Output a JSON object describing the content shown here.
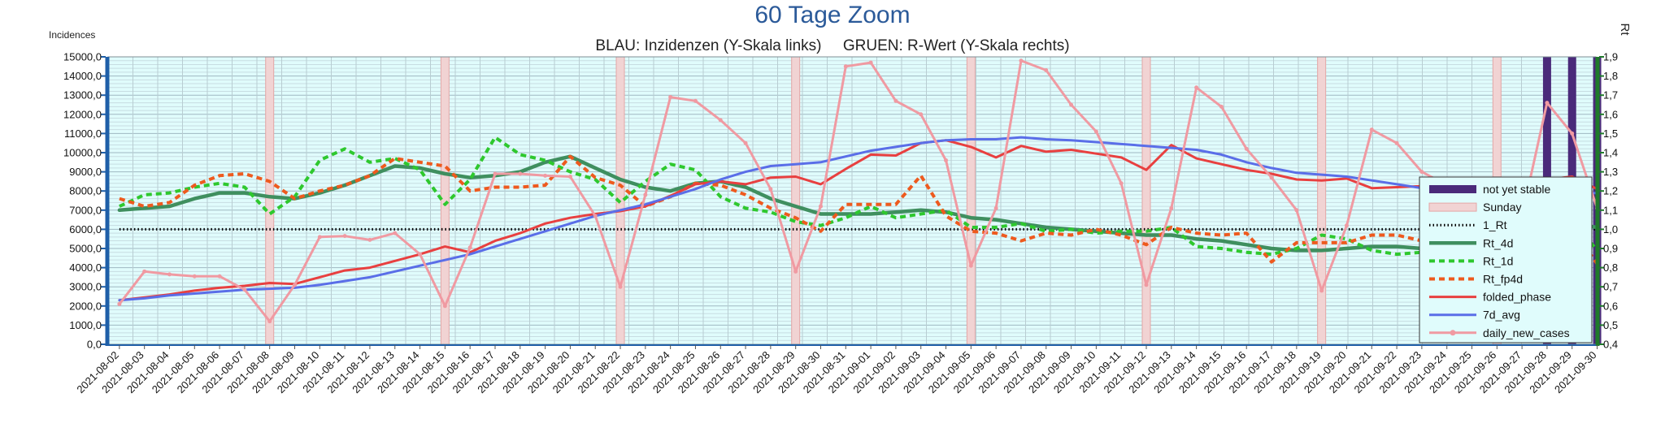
{
  "chart_data": {
    "type": "line",
    "title": "60 Tage Zoom",
    "subtitle": "BLAU: Inzidenzen (Y-Skala links)     GRUEN: R-Wert (Y-Skala rechts)",
    "ylabel": "Incidences",
    "y2label": "Rt",
    "ylim": [
      0,
      15000
    ],
    "y2lim": [
      0.4,
      1.9
    ],
    "ytick_labels": [
      "0,0",
      "1000,0",
      "2000,0",
      "3000,0",
      "4000,0",
      "5000,0",
      "6000,0",
      "7000,0",
      "8000,0",
      "9000,0",
      "10000,0",
      "11000,0",
      "12000,0",
      "13000,0",
      "14000,0",
      "15000,0"
    ],
    "y2tick_labels": [
      "0,4",
      "0,5",
      "0,6",
      "0,7",
      "0,8",
      "0,9",
      "1,0",
      "1,1",
      "1,2",
      "1,3",
      "1,4",
      "1,5",
      "1,6",
      "1,7",
      "1,8",
      "1,9"
    ],
    "grid": true,
    "legend_position": "right",
    "x": [
      "2021-08-02",
      "2021-08-03",
      "2021-08-04",
      "2021-08-05",
      "2021-08-06",
      "2021-08-07",
      "2021-08-08",
      "2021-08-09",
      "2021-08-10",
      "2021-08-11",
      "2021-08-12",
      "2021-08-13",
      "2021-08-14",
      "2021-08-15",
      "2021-08-16",
      "2021-08-17",
      "2021-08-18",
      "2021-08-19",
      "2021-08-20",
      "2021-08-21",
      "2021-08-22",
      "2021-08-23",
      "2021-08-24",
      "2021-08-25",
      "2021-08-26",
      "2021-08-27",
      "2021-08-28",
      "2021-08-29",
      "2021-08-30",
      "2021-08-31",
      "2021-09-01",
      "2021-09-02",
      "2021-09-03",
      "2021-09-04",
      "2021-09-05",
      "2021-09-06",
      "2021-09-07",
      "2021-09-08",
      "2021-09-09",
      "2021-09-10",
      "2021-09-11",
      "2021-09-12",
      "2021-09-13",
      "2021-09-14",
      "2021-09-15",
      "2021-09-16",
      "2021-09-17",
      "2021-09-18",
      "2021-09-19",
      "2021-09-20",
      "2021-09-21",
      "2021-09-22",
      "2021-09-23",
      "2021-09-24",
      "2021-09-25",
      "2021-09-26",
      "2021-09-27",
      "2021-09-28",
      "2021-09-29",
      "2021-09-30"
    ],
    "sunday_markers": [
      "2021-08-08",
      "2021-08-15",
      "2021-08-22",
      "2021-08-29",
      "2021-09-05",
      "2021-09-12",
      "2021-09-19",
      "2021-09-26"
    ],
    "not_yet_stable_markers": [
      "2021-09-28",
      "2021-09-29",
      "2021-09-30"
    ],
    "series": [
      {
        "name": "not yet stable",
        "style": "bar",
        "color": "#4a2a7a"
      },
      {
        "name": "Sunday",
        "style": "bar",
        "color": "#f1d3d3"
      },
      {
        "name": "1_Rt",
        "axis": "right",
        "style": "dotted",
        "color": "#000000",
        "values": [
          1.0,
          1.0,
          1.0,
          1.0,
          1.0,
          1.0,
          1.0,
          1.0,
          1.0,
          1.0,
          1.0,
          1.0,
          1.0,
          1.0,
          1.0,
          1.0,
          1.0,
          1.0,
          1.0,
          1.0,
          1.0,
          1.0,
          1.0,
          1.0,
          1.0,
          1.0,
          1.0,
          1.0,
          1.0,
          1.0,
          1.0,
          1.0,
          1.0,
          1.0,
          1.0,
          1.0,
          1.0,
          1.0,
          1.0,
          1.0,
          1.0,
          1.0,
          1.0,
          1.0,
          1.0,
          1.0,
          1.0,
          1.0,
          1.0,
          1.0,
          1.0,
          1.0,
          1.0,
          1.0,
          1.0,
          1.0,
          1.0,
          1.0,
          1.0,
          1.0
        ]
      },
      {
        "name": "Rt_4d",
        "axis": "right",
        "style": "solid",
        "color": "#3f8f5f",
        "values": [
          1.1,
          1.11,
          1.12,
          1.16,
          1.19,
          1.19,
          1.17,
          1.16,
          1.19,
          1.23,
          1.28,
          1.33,
          1.32,
          1.29,
          1.27,
          1.28,
          1.3,
          1.35,
          1.38,
          1.32,
          1.26,
          1.22,
          1.2,
          1.24,
          1.25,
          1.22,
          1.16,
          1.12,
          1.08,
          1.08,
          1.08,
          1.09,
          1.1,
          1.09,
          1.06,
          1.05,
          1.03,
          1.01,
          1.0,
          0.99,
          0.98,
          0.97,
          0.97,
          0.95,
          0.94,
          0.92,
          0.9,
          0.89,
          0.89,
          0.9,
          0.91,
          0.91,
          0.9,
          0.9,
          0.91,
          0.93,
          0.96,
          0.99,
          1.03,
          1.01
        ]
      },
      {
        "name": "Rt_1d",
        "axis": "right",
        "style": "dashed",
        "color": "#2ec82e",
        "values": [
          1.12,
          1.18,
          1.19,
          1.22,
          1.24,
          1.22,
          1.08,
          1.17,
          1.36,
          1.42,
          1.35,
          1.37,
          1.31,
          1.13,
          1.26,
          1.48,
          1.39,
          1.36,
          1.3,
          1.26,
          1.14,
          1.25,
          1.34,
          1.31,
          1.17,
          1.11,
          1.09,
          1.04,
          1.02,
          1.06,
          1.12,
          1.06,
          1.08,
          1.1,
          1.01,
          1.01,
          1.03,
          0.99,
          1.0,
          0.98,
          0.99,
          0.99,
          1.01,
          0.91,
          0.9,
          0.88,
          0.87,
          0.9,
          0.97,
          0.95,
          0.89,
          0.87,
          0.88,
          0.91,
          0.95,
          0.97,
          1.02,
          1.09,
          1.05,
          0.89
        ]
      },
      {
        "name": "Rt_fp4d",
        "axis": "right",
        "style": "dashed",
        "color": "#ee5a1e",
        "values": [
          1.16,
          1.12,
          1.14,
          1.23,
          1.28,
          1.29,
          1.25,
          1.16,
          1.2,
          1.23,
          1.28,
          1.37,
          1.35,
          1.33,
          1.2,
          1.22,
          1.22,
          1.23,
          1.38,
          1.27,
          1.23,
          1.12,
          1.17,
          1.24,
          1.23,
          1.18,
          1.11,
          1.06,
          0.99,
          1.13,
          1.13,
          1.13,
          1.28,
          1.07,
          0.99,
          0.98,
          0.94,
          0.98,
          0.97,
          1.0,
          0.97,
          0.92,
          1.01,
          0.98,
          0.97,
          0.98,
          0.83,
          0.93,
          0.93,
          0.93,
          0.97,
          0.97,
          0.94,
          1.03,
          0.97,
          0.99,
          1.02,
          1.05,
          1.01,
          0.82
        ]
      },
      {
        "name": "folded_phase",
        "axis": "left",
        "style": "solid",
        "color": "#e84040",
        "values": [
          2300,
          2450,
          2600,
          2800,
          2950,
          3050,
          3200,
          3150,
          3500,
          3850,
          4000,
          4350,
          4700,
          5100,
          4800,
          5400,
          5800,
          6300,
          6600,
          6800,
          6950,
          7200,
          7750,
          8350,
          8500,
          8350,
          8700,
          8750,
          8350,
          9150,
          9900,
          9850,
          10500,
          10650,
          10300,
          9750,
          10350,
          10050,
          10150,
          9950,
          9750,
          9100,
          10400,
          9700,
          9400,
          9100,
          8900,
          8600,
          8550,
          8650,
          8150,
          8200,
          8250,
          8150,
          8350,
          7950,
          8150,
          8600,
          8750,
          8100
        ]
      },
      {
        "name": "7d_avg",
        "axis": "left",
        "style": "solid",
        "color": "#5a6ee8",
        "values": [
          2300,
          2400,
          2550,
          2650,
          2750,
          2850,
          2900,
          2950,
          3100,
          3300,
          3500,
          3800,
          4100,
          4400,
          4700,
          5100,
          5500,
          5900,
          6300,
          6700,
          7000,
          7300,
          7700,
          8100,
          8600,
          9000,
          9300,
          9400,
          9500,
          9800,
          10100,
          10300,
          10500,
          10650,
          10700,
          10700,
          10800,
          10700,
          10650,
          10550,
          10450,
          10350,
          10250,
          10150,
          9900,
          9500,
          9200,
          8950,
          8850,
          8750,
          8550,
          8350,
          8150,
          8000,
          7850,
          7750,
          7700,
          7750,
          7850,
          7900
        ]
      },
      {
        "name": "daily_new_cases",
        "axis": "left",
        "style": "solid-marker",
        "color": "#f09aa2",
        "values": [
          2100,
          3800,
          3650,
          3550,
          3550,
          2850,
          1200,
          3100,
          5600,
          5650,
          5450,
          5800,
          4700,
          2000,
          5050,
          8900,
          8900,
          8800,
          8750,
          6700,
          3000,
          7800,
          12900,
          12700,
          11700,
          10500,
          8100,
          3800,
          7200,
          14500,
          14700,
          12700,
          12000,
          9600,
          4100,
          7100,
          14800,
          14300,
          12500,
          11100,
          8400,
          3100,
          7100,
          13400,
          12400,
          10200,
          8700,
          7000,
          2800,
          6200,
          11200,
          10500,
          9000,
          8300,
          6400,
          2600,
          6700,
          12600,
          11000,
          7100
        ]
      }
    ]
  }
}
